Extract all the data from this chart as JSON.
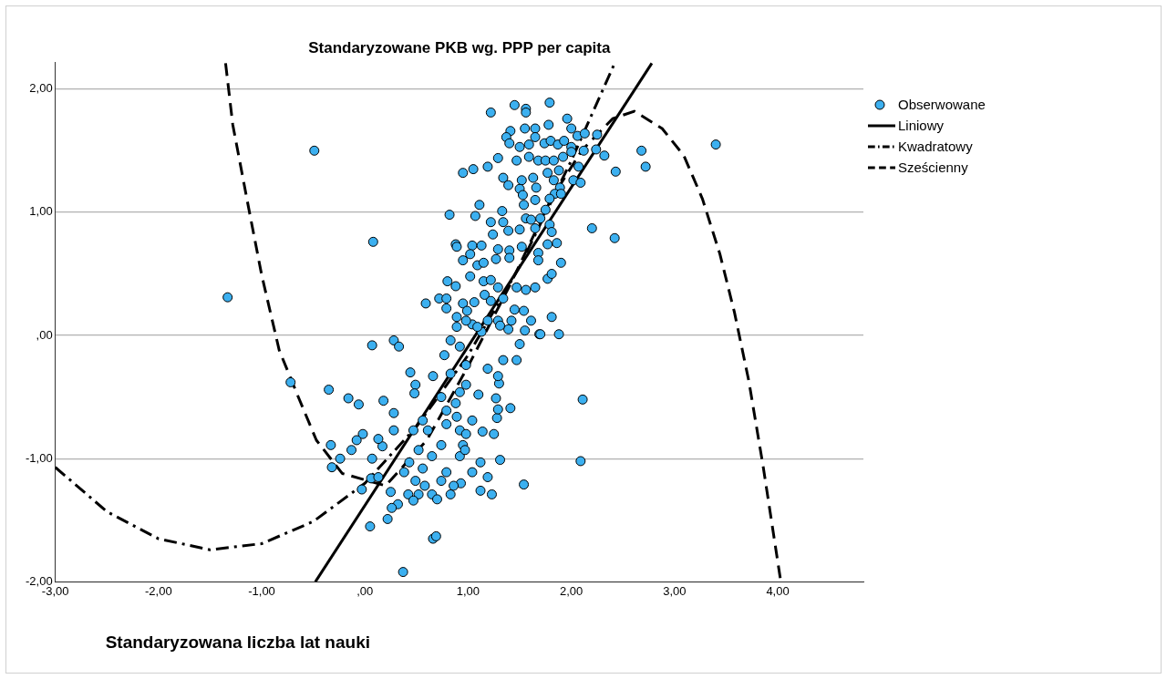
{
  "chart_data": {
    "type": "scatter",
    "title": "Standaryzowane PKB wg. PPP per capita",
    "xlabel": "Standaryzowana liczba lat nauki",
    "xlim": [
      -3,
      4.83
    ],
    "ylim": [
      -2,
      2.22
    ],
    "xticks": [
      {
        "value": -3,
        "label": "-3,00"
      },
      {
        "value": -2,
        "label": "-2,00"
      },
      {
        "value": -1,
        "label": "-1,00"
      },
      {
        "value": 0,
        "label": ",00"
      },
      {
        "value": 1,
        "label": "1,00"
      },
      {
        "value": 2,
        "label": "2,00"
      },
      {
        "value": 3,
        "label": "3,00"
      },
      {
        "value": 4,
        "label": "4,00"
      }
    ],
    "yticks": [
      {
        "value": -2,
        "label": "-2,00"
      },
      {
        "value": -1,
        "label": "-1,00"
      },
      {
        "value": 0,
        "label": ",00"
      },
      {
        "value": 1,
        "label": "1,00"
      },
      {
        "value": 2,
        "label": "2,00"
      }
    ],
    "grid": "y",
    "legend": "right",
    "series": [
      {
        "name": "Obserwowane",
        "marker": "circle",
        "color": "#3cb0f0",
        "x": [
          -1.33,
          -0.49,
          0.08,
          -0.72,
          -0.35,
          -0.16,
          -0.06,
          0.18,
          -0.02,
          -0.08,
          -0.33,
          -0.13,
          -0.24,
          -0.32,
          0.07,
          0.17,
          -0.03,
          0.06,
          0.13,
          0.25,
          0.32,
          0.26,
          0.22,
          0.05,
          0.66,
          0.69,
          0.37,
          0.07,
          0.28,
          0.33,
          0.44,
          0.49,
          0.48,
          0.28,
          0.77,
          0.66,
          0.74,
          0.79,
          0.61,
          0.52,
          0.43,
          0.38,
          0.49,
          0.58,
          0.65,
          0.7,
          0.83,
          0.93,
          0.79,
          0.92,
          0.95,
          0.92,
          0.89,
          0.92,
          0.98,
          0.47,
          0.28,
          0.13,
          0.83,
          0.92,
          0.98,
          0.83,
          0.88,
          0.79,
          0.56,
          0.74,
          0.65,
          0.56,
          0.74,
          0.86,
          1.04,
          0.52,
          0.42,
          0.47,
          2.2,
          2.42,
          2.11,
          2.09,
          1.54,
          1.88,
          1.69,
          1.41,
          1.31,
          1.23,
          1.12,
          1.19,
          1.12,
          1.25,
          1.14,
          1.28,
          1.29,
          1.27,
          1.3,
          1.29,
          1.47,
          1.5,
          1.34,
          1.55,
          0.97,
          0.98,
          1.04,
          1.1,
          1.19,
          3.4,
          1.22,
          1.45,
          1.56,
          1.56,
          1.79,
          1.96,
          2.0,
          1.78,
          1.55,
          1.65,
          1.41,
          1.37,
          1.4,
          1.5,
          1.59,
          1.65,
          1.74,
          1.8,
          1.87,
          1.93,
          2.0,
          2.06,
          2.13,
          2.25,
          2.12,
          2.24,
          2.32,
          2.43,
          2.68,
          2.72,
          1.29,
          1.19,
          1.05,
          0.95,
          1.34,
          1.47,
          1.59,
          1.68,
          1.75,
          1.83,
          1.92,
          2.0,
          1.88,
          2.07,
          1.77,
          1.63,
          1.52,
          1.39,
          1.5,
          1.66,
          1.83,
          2.02,
          2.09,
          1.89,
          1.84,
          1.9,
          1.53,
          1.65,
          1.79,
          1.54,
          1.11,
          0.82,
          1.07,
          1.33,
          1.75,
          1.22,
          1.34,
          1.56,
          1.61,
          1.7,
          1.79,
          1.24,
          1.39,
          1.5,
          1.65,
          1.81,
          1.86,
          0.88,
          0.89,
          1.04,
          1.13,
          1.29,
          1.4,
          1.52,
          1.77,
          1.02,
          0.95,
          1.09,
          1.15,
          1.27,
          1.4,
          1.68,
          1.68,
          1.9,
          1.02,
          0.8,
          0.88,
          1.15,
          1.22,
          1.29,
          1.47,
          1.56,
          1.65,
          1.77,
          1.81,
          1.16,
          0.72,
          0.79,
          0.79,
          0.95,
          1.06,
          0.99,
          0.59,
          1.22,
          1.34,
          1.45,
          1.54,
          1.61,
          1.81,
          1.42,
          1.29,
          0.89,
          1.04,
          1.13,
          1.39,
          1.7,
          0.89,
          0.98,
          1.09,
          1.19,
          1.31
        ],
        "values": [
          0.31,
          1.5,
          0.76,
          -0.38,
          -0.44,
          -0.51,
          -0.56,
          -0.53,
          -0.8,
          -0.85,
          -0.89,
          -0.93,
          -1.0,
          -1.07,
          -1.0,
          -0.9,
          -1.25,
          -1.16,
          -1.15,
          -1.27,
          -1.37,
          -1.4,
          -1.49,
          -1.55,
          -1.65,
          -1.63,
          -1.92,
          -0.08,
          -0.04,
          -0.09,
          -0.3,
          -0.4,
          -0.47,
          -0.63,
          -0.16,
          -0.33,
          -0.5,
          -0.61,
          -0.77,
          -0.93,
          -1.03,
          -1.11,
          -1.18,
          -1.22,
          -1.29,
          -1.33,
          -1.29,
          -1.2,
          -1.11,
          -0.98,
          -0.89,
          -0.77,
          -0.66,
          -0.46,
          -0.4,
          -0.77,
          -0.77,
          -0.84,
          -0.04,
          -0.09,
          -0.24,
          -0.31,
          -0.55,
          -0.72,
          -0.69,
          -0.89,
          -0.98,
          -1.08,
          -1.18,
          -1.22,
          -1.11,
          -1.29,
          -1.29,
          -1.34,
          0.87,
          0.79,
          -0.52,
          -1.02,
          -1.21,
          0.01,
          0.01,
          -0.59,
          -1.01,
          -1.29,
          -1.26,
          -1.15,
          -1.03,
          -0.8,
          -0.78,
          -0.67,
          -0.6,
          -0.51,
          -0.39,
          -0.33,
          -0.2,
          -0.07,
          -0.2,
          0.04,
          -0.93,
          -0.8,
          -0.69,
          -0.48,
          -0.27,
          1.55,
          1.81,
          1.87,
          1.84,
          1.81,
          1.89,
          1.76,
          1.68,
          1.71,
          1.68,
          1.68,
          1.66,
          1.61,
          1.56,
          1.53,
          1.55,
          1.61,
          1.56,
          1.58,
          1.55,
          1.58,
          1.53,
          1.62,
          1.64,
          1.63,
          1.5,
          1.51,
          1.46,
          1.33,
          1.5,
          1.37,
          1.44,
          1.37,
          1.35,
          1.32,
          1.28,
          1.42,
          1.45,
          1.42,
          1.42,
          1.42,
          1.45,
          1.49,
          1.34,
          1.37,
          1.32,
          1.28,
          1.26,
          1.22,
          1.19,
          1.2,
          1.26,
          1.26,
          1.24,
          1.2,
          1.15,
          1.15,
          1.14,
          1.1,
          1.11,
          1.06,
          1.06,
          0.98,
          0.97,
          1.01,
          1.02,
          0.92,
          0.92,
          0.95,
          0.94,
          0.95,
          0.9,
          0.82,
          0.85,
          0.86,
          0.87,
          0.84,
          0.75,
          0.74,
          0.72,
          0.73,
          0.73,
          0.7,
          0.69,
          0.72,
          0.74,
          0.66,
          0.61,
          0.57,
          0.59,
          0.62,
          0.63,
          0.67,
          0.61,
          0.59,
          0.48,
          0.44,
          0.4,
          0.44,
          0.45,
          0.39,
          0.39,
          0.37,
          0.39,
          0.46,
          0.5,
          0.33,
          0.3,
          0.3,
          0.22,
          0.26,
          0.27,
          0.2,
          0.26,
          0.28,
          0.3,
          0.21,
          0.2,
          0.12,
          0.15,
          0.12,
          0.12,
          0.07,
          0.09,
          0.03,
          0.05,
          0.01,
          0.15,
          0.12,
          0.07,
          0.12,
          0.08
        ]
      },
      {
        "name": "Liniowy",
        "type": "line",
        "line_style": "solid",
        "color": "#000000",
        "x": [
          -0.48,
          2.78
        ],
        "values": [
          -2.0,
          2.21
        ]
      },
      {
        "name": "Kwadratowy",
        "type": "line",
        "line_style": "dashdot",
        "color": "#000000",
        "x": [
          -3,
          -2.5,
          -2,
          -1.5,
          -1,
          -0.5,
          0,
          0.5,
          1,
          1.5,
          2,
          2.42
        ],
        "values": [
          -1.07,
          -1.43,
          -1.65,
          -1.74,
          -1.69,
          -1.51,
          -1.2,
          -0.74,
          -0.16,
          0.56,
          1.42,
          2.21
        ]
      },
      {
        "name": "Sześcienny",
        "type": "line",
        "line_style": "dashed",
        "color": "#000000",
        "x": [
          -1.35,
          -1.28,
          -1.13,
          -1.0,
          -0.83,
          -0.64,
          -0.47,
          -0.22,
          0.2,
          0.6,
          1.0,
          1.4,
          1.8,
          2.1,
          2.4,
          2.61,
          2.88,
          3.09,
          3.27,
          3.44,
          3.58,
          3.72,
          3.86,
          4.03
        ],
        "values": [
          2.21,
          1.71,
          1.05,
          0.49,
          -0.12,
          -0.51,
          -0.85,
          -1.12,
          -1.22,
          -0.85,
          -0.25,
          0.4,
          1.1,
          1.5,
          1.76,
          1.82,
          1.68,
          1.46,
          1.11,
          0.66,
          0.19,
          -0.37,
          -1.07,
          -2.0
        ]
      }
    ]
  }
}
